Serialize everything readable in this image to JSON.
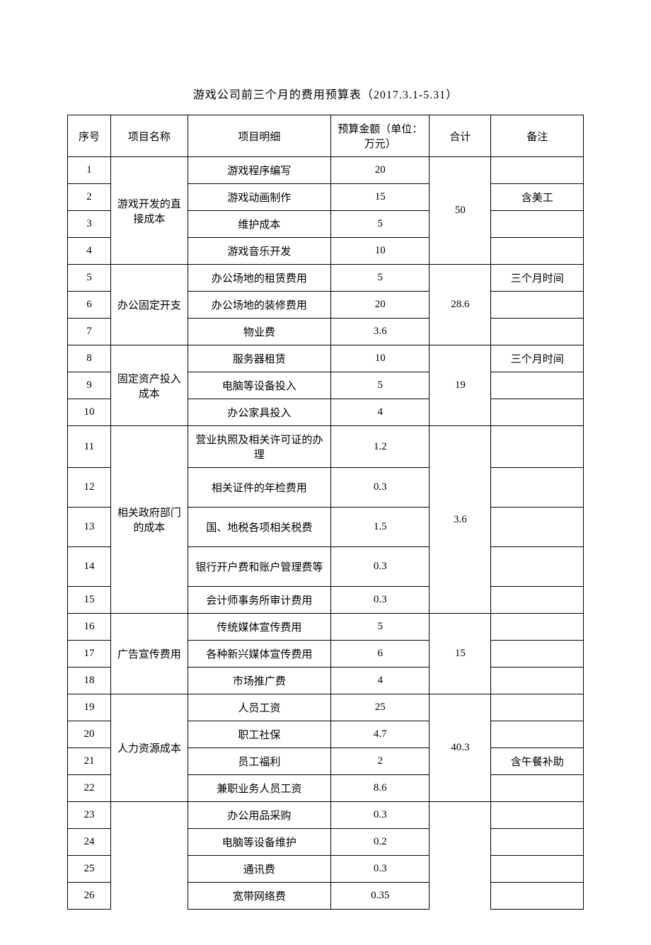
{
  "title": "游戏公司前三个月的费用预算表（2017.3.1-5.31）",
  "headers": {
    "seq": "序号",
    "name": "项目名称",
    "detail": "项目明细",
    "amount": "预算金额（单位：万元）",
    "total": "合计",
    "note": "备注"
  },
  "groups": [
    {
      "name": "游戏开发的直接成本",
      "total": "50",
      "items": [
        {
          "seq": "1",
          "detail": "游戏程序编写",
          "amount": "20",
          "note": ""
        },
        {
          "seq": "2",
          "detail": "游戏动画制作",
          "amount": "15",
          "note": "含美工"
        },
        {
          "seq": "3",
          "detail": "维护成本",
          "amount": "5",
          "note": ""
        },
        {
          "seq": "4",
          "detail": "游戏音乐开发",
          "amount": "10",
          "note": ""
        }
      ]
    },
    {
      "name": "办公固定开支",
      "total": "28.6",
      "items": [
        {
          "seq": "5",
          "detail": "办公场地的租赁费用",
          "amount": "5",
          "note": "三个月时间"
        },
        {
          "seq": "6",
          "detail": "办公场地的装修费用",
          "amount": "20",
          "note": ""
        },
        {
          "seq": "7",
          "detail": "物业费",
          "amount": "3.6",
          "note": ""
        }
      ]
    },
    {
      "name": "固定资产投入成本",
      "total": "19",
      "items": [
        {
          "seq": "8",
          "detail": "服务器租赁",
          "amount": "10",
          "note": "三个月时间"
        },
        {
          "seq": "9",
          "detail": "电脑等设备投入",
          "amount": "5",
          "note": ""
        },
        {
          "seq": "10",
          "detail": "办公家具投入",
          "amount": "4",
          "note": ""
        }
      ]
    },
    {
      "name": "相关政府部门的成本",
      "total": "3.6",
      "items": [
        {
          "seq": "11",
          "detail": "营业执照及相关许可证的办理",
          "amount": "1.2",
          "note": ""
        },
        {
          "seq": "12",
          "detail": "相关证件的年检费用",
          "amount": "0.3",
          "note": ""
        },
        {
          "seq": "13",
          "detail": "国、地税各项相关税费",
          "amount": "1.5",
          "note": ""
        },
        {
          "seq": "14",
          "detail": "银行开户费和账户管理费等",
          "amount": "0.3",
          "note": ""
        },
        {
          "seq": "15",
          "detail": "会计师事务所审计费用",
          "amount": "0.3",
          "note": ""
        }
      ]
    },
    {
      "name": "广告宣传费用",
      "total": "15",
      "items": [
        {
          "seq": "16",
          "detail": "传统媒体宣传费用",
          "amount": "5",
          "note": ""
        },
        {
          "seq": "17",
          "detail": "各种新兴媒体宣传费用",
          "amount": "6",
          "note": ""
        },
        {
          "seq": "18",
          "detail": "市场推广费",
          "amount": "4",
          "note": ""
        }
      ]
    },
    {
      "name": "人力资源成本",
      "total": "40.3",
      "items": [
        {
          "seq": "19",
          "detail": "人员工资",
          "amount": "25",
          "note": ""
        },
        {
          "seq": "20",
          "detail": "职工社保",
          "amount": "4.7",
          "note": ""
        },
        {
          "seq": "21",
          "detail": "员工福利",
          "amount": "2",
          "note": "含午餐补助"
        },
        {
          "seq": "22",
          "detail": "兼职业务人员工资",
          "amount": "8.6",
          "note": ""
        }
      ]
    },
    {
      "name": "",
      "total": "",
      "items": [
        {
          "seq": "23",
          "detail": "办公用品采购",
          "amount": "0.3",
          "note": ""
        },
        {
          "seq": "24",
          "detail": "电脑等设备维护",
          "amount": "0.2",
          "note": ""
        },
        {
          "seq": "25",
          "detail": "通讯费",
          "amount": "0.3",
          "note": ""
        },
        {
          "seq": "26",
          "detail": "宽带网络费",
          "amount": "0.35",
          "note": ""
        }
      ]
    }
  ],
  "styling": {
    "border_color": "#000000",
    "background_color": "#ffffff",
    "text_color": "#000000",
    "font_size": 15,
    "title_font_size": 16,
    "border_width": 1.5
  }
}
